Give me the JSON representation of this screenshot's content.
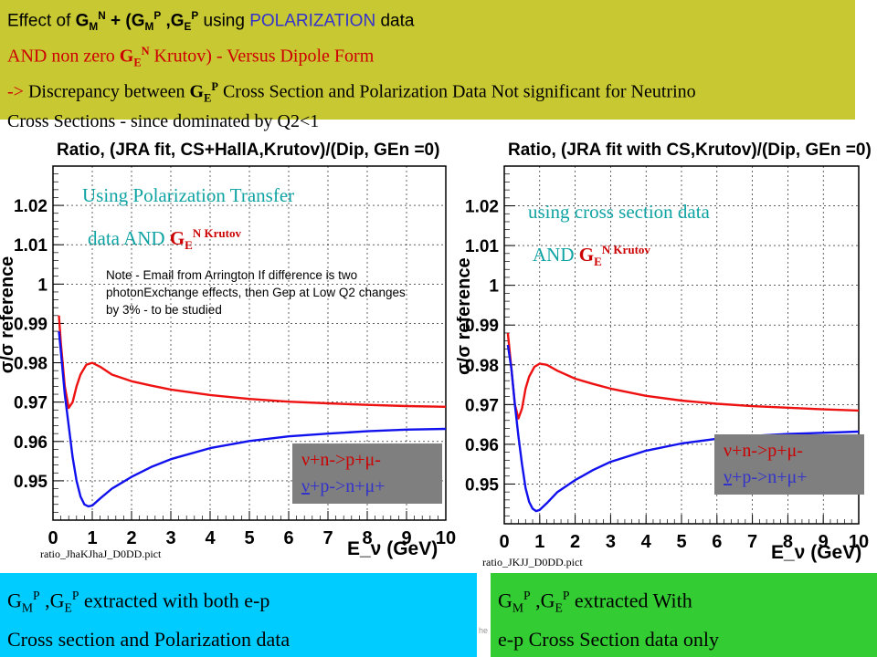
{
  "header": {
    "line1": {
      "prefix": "Effect of ",
      "g": "G",
      "m": "M",
      "n": "N",
      "mid": " + (G",
      "m2": "M",
      "p": "P",
      "comma": " ,G",
      "e": "E",
      "p2": "P",
      "using": " using ",
      "polarization": "POLARIZATION",
      "data": "   data"
    },
    "line2": {
      "and": "AND non zero ",
      "g": "G",
      "e": "E",
      "n": "N",
      "rest": " Krutov) - Versus Dipole Form"
    },
    "line3": {
      "arrow": "->",
      "disc": " Discrepancy between ",
      "g": "G",
      "e": "E",
      "p": "P",
      "rest": " Cross Section and Polarization Data Not significant for Neutrino"
    },
    "line4": "Cross Sections - since dominated by Q2<1"
  },
  "plots": {
    "left": {
      "caption": "ratio_JhaKJhaJ_D0DD.pict",
      "overlay1": "Using Polarization Transfer",
      "overlay2_prefix": "data  AND ",
      "overlay2_g": "G",
      "overlay2_e": "E",
      "overlay2_sup": "N Krutov",
      "note": "Note - Email from Arrington If difference is two photonExchange effects, then Gep at Low Q2 changes by 3% - to be studied",
      "legend1": "ν+n->p+μ-",
      "legend2_nu": "ν",
      "legend2_rest": "+p->n+μ+"
    },
    "right": {
      "caption": "ratio_JKJJ_D0DD.pict",
      "overlay1": "using cross section data",
      "overlay2_prefix": "AND ",
      "overlay2_g": "G",
      "overlay2_e": "E",
      "overlay2_sup": "N Krutov",
      "legend1": "ν+n->p+μ-",
      "legend2_nu": "ν",
      "legend2_rest": "+p->n+μ+"
    }
  },
  "bottom": {
    "left": {
      "g1": "G",
      "m": "M",
      "p": "P",
      "comma": " ,G",
      "e": "E",
      "p2": "P",
      "rest": " extracted with both e-p",
      "line2": " Cross  section and Polarization data"
    },
    "right": {
      "g1": "G",
      "m": "M",
      "p": "P",
      "comma": " ,G",
      "e": "E",
      "p2": "P",
      "rest": " extracted With",
      "line2": "e-p  Cross Section data only"
    },
    "footer_hint": "he"
  },
  "colors": {
    "header_bg": "#c8c832",
    "bottom_left_bg": "#00ccff",
    "bottom_right_bg": "#33cc33",
    "red_curve": "#ee1111",
    "blue_curve": "#1111ee",
    "teal_text": "#0fa3a3",
    "legend_bg": "#7f7f7f"
  },
  "chart_data": [
    {
      "type": "line",
      "title": "Ratio, (JRA fit, CS+HallA,Krutov)/(Dip, GEn =0)",
      "xlabel": "E_ν (GeV)",
      "ylabel": "σ/σ reference",
      "xlim": [
        0,
        10
      ],
      "ylim": [
        0.94,
        1.03
      ],
      "xticks": [
        0,
        1,
        2,
        3,
        4,
        5,
        6,
        7,
        8,
        9,
        10
      ],
      "yticks": [
        0.95,
        0.96,
        0.97,
        0.98,
        0.99,
        1,
        1.01,
        1.02
      ],
      "ytick_labels": [
        "0.95",
        "0.96",
        "0.97",
        "0.98",
        "0.99",
        "1",
        "1.01",
        "1.02"
      ],
      "grid": true,
      "series": [
        {
          "name": "ν+n->p+μ-",
          "color": "#ee1111",
          "x": [
            0.15,
            0.2,
            0.3,
            0.4,
            0.5,
            0.6,
            0.7,
            0.85,
            1.0,
            1.2,
            1.5,
            2,
            2.5,
            3,
            4,
            5,
            6,
            7,
            8,
            9,
            10
          ],
          "y": [
            0.992,
            0.985,
            0.974,
            0.9685,
            0.97,
            0.974,
            0.977,
            0.9795,
            0.98,
            0.979,
            0.977,
            0.9753,
            0.9742,
            0.9732,
            0.9718,
            0.9708,
            0.9701,
            0.9697,
            0.9693,
            0.969,
            0.9688
          ]
        },
        {
          "name": "ν+p->n+μ+",
          "color": "#1111ee",
          "x": [
            0.15,
            0.2,
            0.3,
            0.4,
            0.5,
            0.6,
            0.7,
            0.8,
            0.9,
            1.0,
            1.2,
            1.5,
            2,
            2.5,
            3,
            4,
            5,
            6,
            7,
            8,
            9,
            10
          ],
          "y": [
            0.988,
            0.983,
            0.972,
            0.964,
            0.956,
            0.95,
            0.946,
            0.944,
            0.9435,
            0.9437,
            0.9455,
            0.948,
            0.951,
            0.9535,
            0.9555,
            0.9583,
            0.9601,
            0.9613,
            0.962,
            0.9626,
            0.963,
            0.9632
          ]
        }
      ]
    },
    {
      "type": "line",
      "title": "Ratio, (JRA fit with CS,Krutov)/(Dip, GEn =0)",
      "xlabel": "E_ν (GeV)",
      "ylabel": "σ/σ reference",
      "xlim": [
        0,
        10
      ],
      "ylim": [
        0.94,
        1.03
      ],
      "xticks": [
        0,
        1,
        2,
        3,
        4,
        5,
        6,
        7,
        8,
        9,
        10
      ],
      "yticks": [
        0.95,
        0.96,
        0.97,
        0.98,
        0.99,
        1,
        1.01,
        1.02
      ],
      "ytick_labels": [
        "0.95",
        "0.96",
        "0.97",
        "0.98",
        "0.99",
        "1",
        "1.01",
        "1.02"
      ],
      "grid": true,
      "series": [
        {
          "name": "ν+n->p+μ-",
          "color": "#ee1111",
          "x": [
            0.1,
            0.2,
            0.3,
            0.4,
            0.5,
            0.6,
            0.7,
            0.85,
            1.0,
            1.2,
            1.5,
            2,
            2.5,
            3,
            4,
            5,
            6,
            7,
            8,
            9,
            10
          ],
          "y": [
            0.988,
            0.979,
            0.97,
            0.9665,
            0.969,
            0.974,
            0.977,
            0.9795,
            0.9803,
            0.98,
            0.9785,
            0.9765,
            0.9752,
            0.974,
            0.9722,
            0.971,
            0.9702,
            0.9696,
            0.9692,
            0.9688,
            0.9685
          ]
        },
        {
          "name": "ν+p->n+μ+",
          "color": "#1111ee",
          "x": [
            0.1,
            0.2,
            0.3,
            0.4,
            0.5,
            0.6,
            0.7,
            0.8,
            0.9,
            1.0,
            1.2,
            1.5,
            2,
            2.5,
            3,
            4,
            5,
            6,
            7,
            8,
            9,
            10
          ],
          "y": [
            0.985,
            0.979,
            0.97,
            0.962,
            0.955,
            0.949,
            0.9455,
            0.9438,
            0.9432,
            0.9435,
            0.9452,
            0.948,
            0.951,
            0.9535,
            0.9556,
            0.9584,
            0.9602,
            0.9614,
            0.9621,
            0.9626,
            0.9629,
            0.9632
          ]
        }
      ]
    }
  ]
}
